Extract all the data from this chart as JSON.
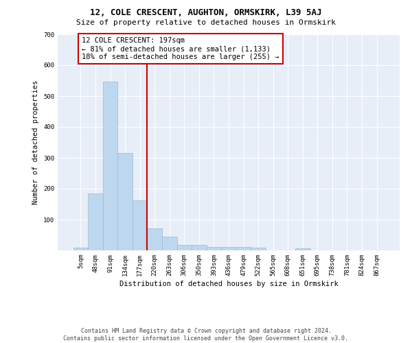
{
  "title": "12, COLE CRESCENT, AUGHTON, ORMSKIRK, L39 5AJ",
  "subtitle": "Size of property relative to detached houses in Ormskirk",
  "xlabel": "Distribution of detached houses by size in Ormskirk",
  "ylabel": "Number of detached properties",
  "categories": [
    "5sqm",
    "48sqm",
    "91sqm",
    "134sqm",
    "177sqm",
    "220sqm",
    "263sqm",
    "306sqm",
    "350sqm",
    "393sqm",
    "436sqm",
    "479sqm",
    "522sqm",
    "565sqm",
    "608sqm",
    "651sqm",
    "695sqm",
    "738sqm",
    "781sqm",
    "824sqm",
    "867sqm"
  ],
  "values": [
    8,
    185,
    547,
    315,
    163,
    72,
    45,
    18,
    18,
    11,
    12,
    11,
    8,
    0,
    0,
    6,
    0,
    0,
    0,
    0,
    0
  ],
  "bar_color": "#bdd7ee",
  "bar_edge_color": "#9db8d0",
  "vline_x": 4.5,
  "vline_color": "#cc0000",
  "annotation_text": "12 COLE CRESCENT: 197sqm\n← 81% of detached houses are smaller (1,133)\n18% of semi-detached houses are larger (255) →",
  "annotation_box_color": "#ffffff",
  "annotation_box_edge": "#cc0000",
  "ylim": [
    0,
    700
  ],
  "yticks": [
    0,
    100,
    200,
    300,
    400,
    500,
    600,
    700
  ],
  "background_color": "#e8eef7",
  "footer": "Contains HM Land Registry data © Crown copyright and database right 2024.\nContains public sector information licensed under the Open Government Licence v3.0.",
  "title_fontsize": 9,
  "subtitle_fontsize": 8,
  "xlabel_fontsize": 7.5,
  "ylabel_fontsize": 7.5,
  "tick_fontsize": 6.5,
  "annotation_fontsize": 7.5,
  "footer_fontsize": 6
}
